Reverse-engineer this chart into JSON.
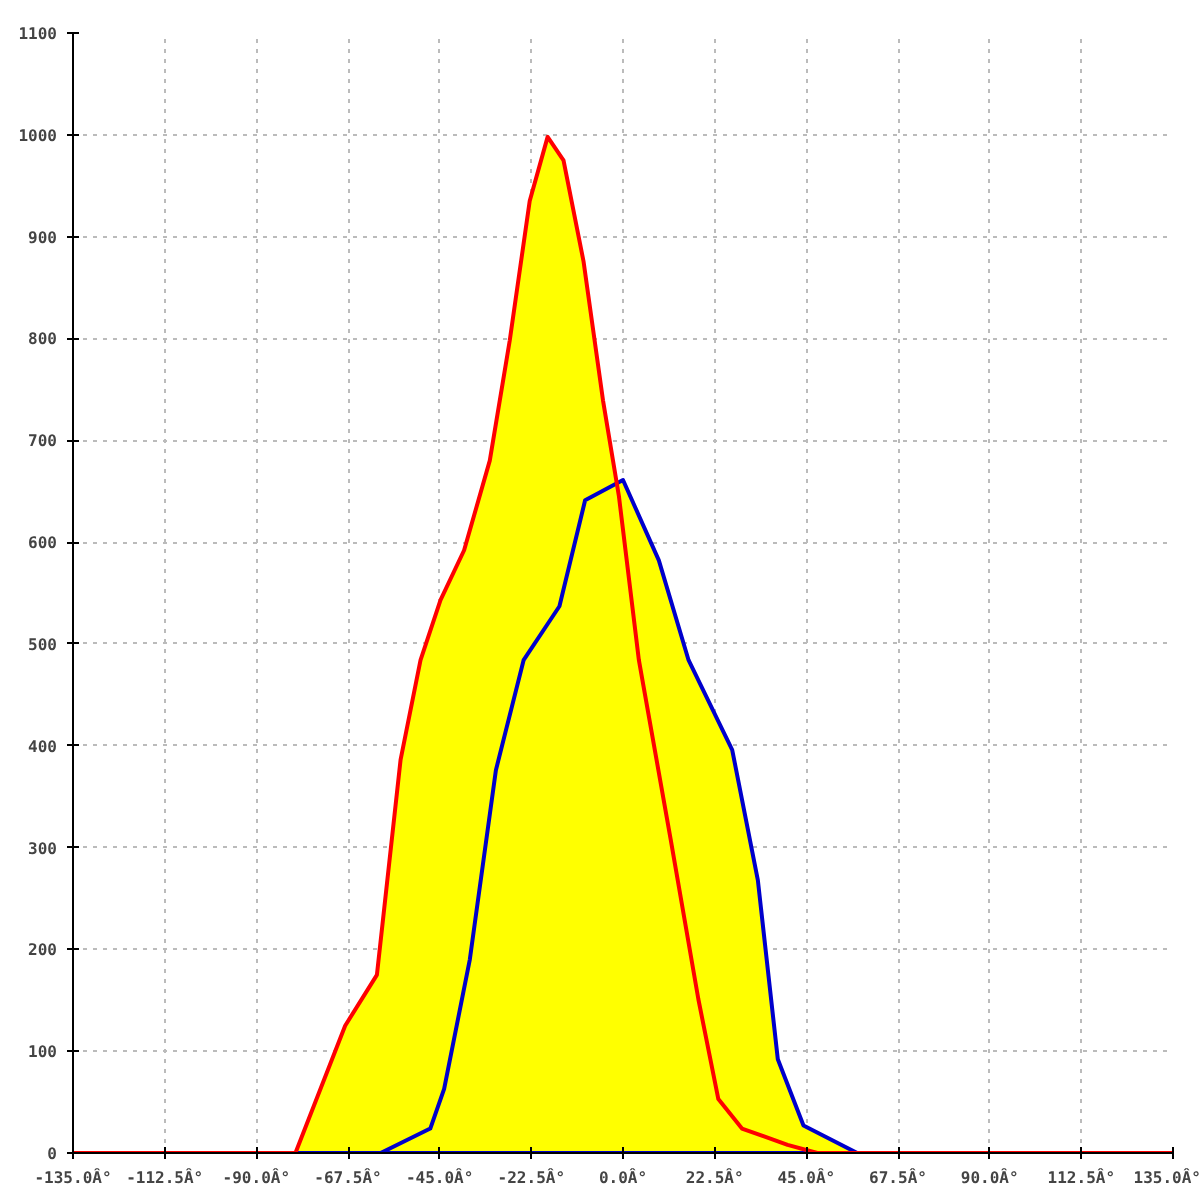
{
  "chart_data": {
    "type": "area",
    "grid": true,
    "line_style": "solid",
    "xlim": [
      -135,
      135
    ],
    "ylim": [
      0,
      1100
    ],
    "xticks": [
      {
        "value": -135,
        "label": "-135.0Â°"
      },
      {
        "value": -112.5,
        "label": "-112.5Â°"
      },
      {
        "value": -90,
        "label": "-90.0Â°"
      },
      {
        "value": -67.5,
        "label": "-67.5Â°"
      },
      {
        "value": -45,
        "label": "-45.0Â°"
      },
      {
        "value": -22.5,
        "label": "-22.5Â°"
      },
      {
        "value": 0,
        "label": "0.0Â°"
      },
      {
        "value": 22.5,
        "label": "22.5Â°"
      },
      {
        "value": 45,
        "label": "45.0Â°"
      },
      {
        "value": 67.5,
        "label": "67.5Â°"
      },
      {
        "value": 90,
        "label": "90.0Â°"
      },
      {
        "value": 112.5,
        "label": "112.5Â°"
      },
      {
        "value": 135,
        "label": "135.0Â°"
      }
    ],
    "yticks": [
      0,
      100,
      200,
      300,
      400,
      500,
      600,
      700,
      800,
      900,
      1000,
      1100
    ],
    "series": [
      {
        "color": "#ff0000",
        "x": [
          -135,
          -80.4,
          -68.2,
          -60.4,
          -54.6,
          -49.7,
          -44.8,
          -39,
          -32.7,
          -27.8,
          -22.9,
          -18.5,
          -14.6,
          -9.7,
          -4.9,
          -1,
          3.9,
          11.7,
          18.5,
          23.4,
          29.2,
          40.4,
          47.7,
          135
        ],
        "values": [
          0,
          0,
          125,
          175,
          386,
          484,
          543,
          592,
          680,
          798,
          935,
          998,
          975,
          876,
          739,
          645,
          484,
          308,
          151,
          53,
          24,
          8,
          0,
          0
        ]
      },
      {
        "color": "#0000cc",
        "x": [
          -80.4,
          -59.5,
          -47.3,
          -43.9,
          -37.6,
          -31.2,
          -24.4,
          -15.6,
          -9.3,
          0,
          8.8,
          16.1,
          26.8,
          33.1,
          38,
          44.3,
          57.5
        ],
        "values": [
          0,
          0,
          24,
          63,
          190,
          376,
          484,
          537,
          641,
          661,
          582,
          484,
          396,
          268,
          92,
          27,
          0
        ]
      }
    ]
  }
}
